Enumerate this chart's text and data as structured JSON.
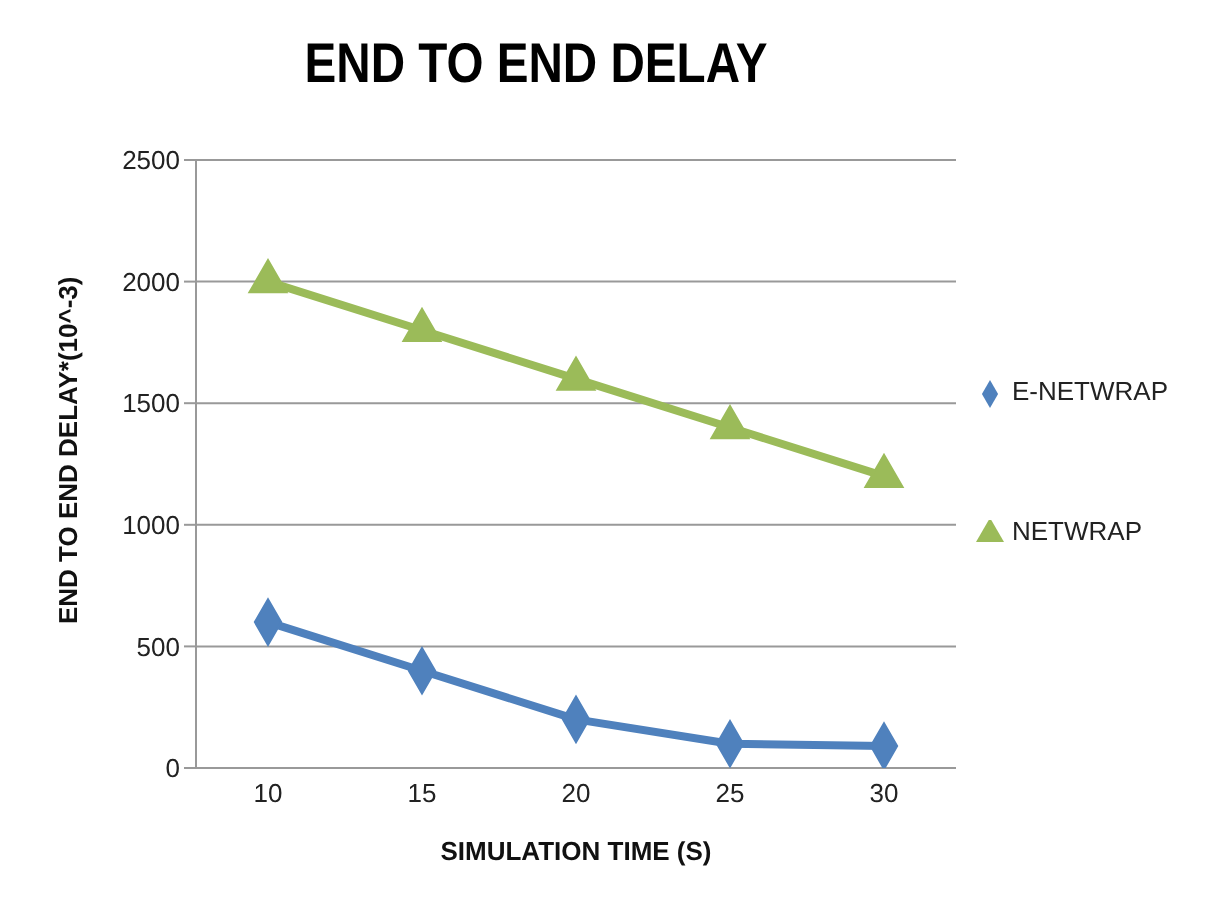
{
  "chart_data": {
    "type": "line",
    "title": "END TO END DELAY",
    "xlabel": "SIMULATION TIME (S)",
    "ylabel": "END TO END DELAY*(10^-3)",
    "categories": [
      "10",
      "15",
      "20",
      "25",
      "30"
    ],
    "series": [
      {
        "name": "E-NETWRAP",
        "color": "#4f81bd",
        "marker": "diamond",
        "values": [
          600,
          400,
          200,
          100,
          90
        ]
      },
      {
        "name": "NETWRAP",
        "color": "#9bbb59",
        "marker": "triangle",
        "values": [
          2000,
          1800,
          1600,
          1400,
          1200
        ]
      }
    ],
    "ylim": [
      0,
      2500
    ],
    "yticks": [
      0,
      500,
      1000,
      1500,
      2000,
      2500
    ],
    "grid": "y",
    "legend": "right",
    "line_style": "solid"
  }
}
